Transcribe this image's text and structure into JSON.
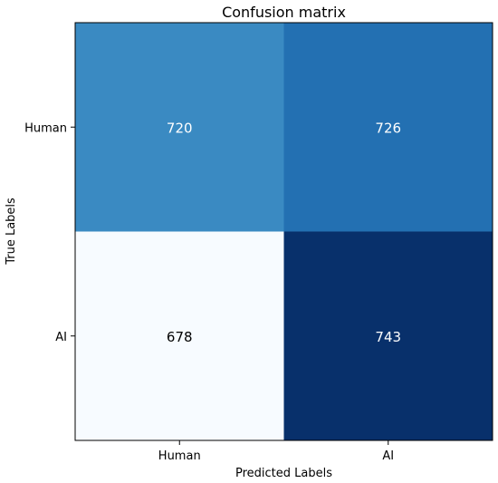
{
  "chart_data": {
    "type": "heatmap",
    "title": "Confusion matrix",
    "xlabel": "Predicted Labels",
    "ylabel": "True Labels",
    "x_categories": [
      "Human",
      "AI"
    ],
    "y_categories": [
      "Human",
      "AI"
    ],
    "values": [
      [
        720,
        726
      ],
      [
        678,
        743
      ]
    ],
    "colormap": "Blues",
    "value_range": [
      678,
      743
    ],
    "colors": {
      "cells": [
        [
          "#3a8ac2",
          "#2370b2"
        ],
        [
          "#f7fbff",
          "#08306b"
        ]
      ],
      "text_on_dark": "#ffffff",
      "text_on_light": "#000000"
    },
    "grid": false
  }
}
